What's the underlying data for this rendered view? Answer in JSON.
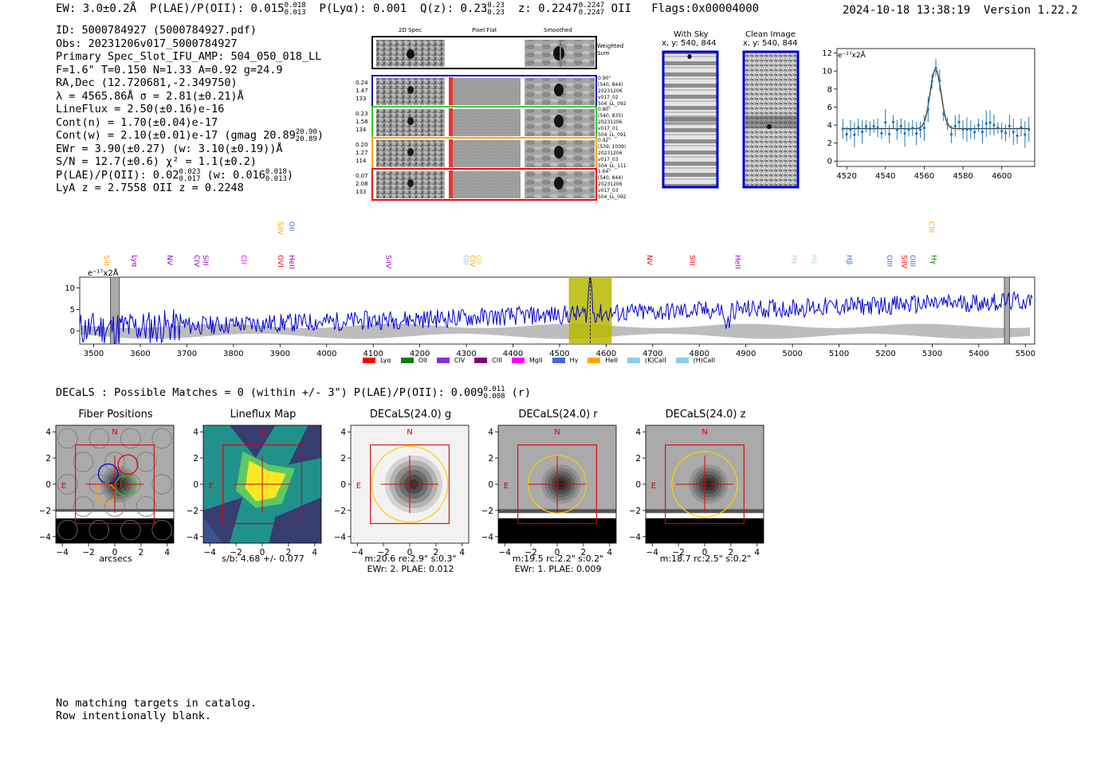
{
  "header": {
    "summary_ew": "EW: 3.0±0.2Å",
    "summary_plae_label": "P(LAE)/P(OII): 0.015",
    "summary_plae_hi": "0.018",
    "summary_plae_lo": "0.013",
    "summary_plya": "P(Lyα): 0.001",
    "summary_q_label": "Q(z): 0.23",
    "summary_q_hi": "0.23",
    "summary_q_lo": "0.23",
    "summary_z_label": "z: 0.2247",
    "summary_z_hi": "0.2247",
    "summary_z_lo": "0.2247",
    "summary_z_line": "OII",
    "summary_flags": "Flags:0x00004000",
    "timestamp": "2024-10-18 13:38:19",
    "version": "Version 1.22.2"
  },
  "info": {
    "id": "ID: 5000784927 (5000784927.pdf)",
    "obs": "Obs: 20231206v017_5000784927",
    "primary": "Primary Spec_Slot_IFU_AMP: 504_050_018_LL",
    "f_line": "F=1.6\"  T=0.150  N=1.33  A=0.92  g=24.9",
    "radec": "RA,Dec (12.720681,-2.349750)",
    "lambda": "λ = 4565.86Å  σ = 2.81(±0.21)Å",
    "lineflux": "LineFlux = 2.50(±0.16)e-16",
    "cont_n": "Cont(n) = 1.70(±0.04)e-17",
    "cont_w_label": "Cont(w) = 2.10(±0.01)e-17 (gmag 20.89",
    "cont_w_hi": "20.90",
    "cont_w_lo": "20.89",
    "cont_w_close": ")",
    "ewr": "EWr = 3.90(±0.27) (w: 3.10(±0.19))Å",
    "sn": "S/N = 12.7(±0.6)  χ² = 1.1(±0.2)",
    "plae_label": "P(LAE)/P(OII): 0.02",
    "plae_hi": "0.023",
    "plae_lo": "0.017",
    "plae_w": "(w: 0.016",
    "plae_w_hi": "0.018",
    "plae_w_lo": "0.013",
    "plae_w_close": ")",
    "lya_z": "LyA z = 2.7558   OII z = 0.2248"
  },
  "cutouts": {
    "col_2d": "2D Spec",
    "col_flat": "Pixel Flat",
    "col_smooth": "Smoothed",
    "weighted_sum": "Weighted Sum",
    "rows": [
      {
        "left": [
          "0.24",
          "1.47",
          "133"
        ],
        "right": [
          "0.90\"",
          "(540, 844)",
          "20231206",
          "v017_02",
          "504_LL_092"
        ],
        "color": "#0000cc"
      },
      {
        "left": [
          "0.23",
          "1.58",
          "134"
        ],
        "right": [
          "0.80\"",
          "(540, 835)",
          "20231206",
          "v017_01",
          "504_LL_091"
        ],
        "color": "#33cc33"
      },
      {
        "left": [
          "0.20",
          "1.27",
          "114"
        ],
        "right": [
          "0.92\"",
          "(539, 1009)",
          "20231206",
          "v017_03",
          "504_LL_111"
        ],
        "color": "#ffa500"
      },
      {
        "left": [
          "0.07",
          "2.08",
          "133"
        ],
        "right": [
          "1.64\"",
          "(540, 844)",
          "20231206",
          "v017_03",
          "504_LL_092"
        ],
        "color": "#ff0000"
      }
    ],
    "with_sky_title": "With Sky",
    "with_sky_xy": "x, y: 540, 844",
    "clean_title": "Clean Image",
    "clean_xy": "x, y: 540, 844"
  },
  "zoom_plot": {
    "ylabel": "e⁻¹⁷x2Å",
    "xticks": [
      "4520",
      "4540",
      "4560",
      "4580",
      "4600"
    ],
    "yticks": [
      "0",
      "2",
      "4",
      "6",
      "8",
      "10",
      "12"
    ]
  },
  "spectrum": {
    "ylabel": "e⁻¹⁷x2Å",
    "yticks": [
      "0",
      "5",
      "10"
    ],
    "xticks": [
      "3500",
      "3600",
      "3700",
      "3800",
      "3900",
      "4000",
      "4100",
      "4200",
      "4300",
      "4400",
      "4500",
      "4600",
      "4700",
      "4800",
      "4900",
      "5000",
      "5100",
      "5200",
      "5300",
      "5400",
      "5500"
    ],
    "line_labels": [
      {
        "text": "SiII",
        "color": "#ffa500",
        "w": 3518
      },
      {
        "text": "Lyα",
        "color": "#9400d3",
        "w": 3578
      },
      {
        "text": "NV",
        "color": "#9400d3",
        "w": 3653
      },
      {
        "text": "CIV",
        "color": "#9400d3",
        "w": 3711
      },
      {
        "text": "SiII",
        "color": "#9400d3",
        "w": 3730
      },
      {
        "text": "CII",
        "color": "#ff00ff",
        "w": 3812
      },
      {
        "text": "SiIV",
        "color": "#ffa500",
        "w": 3891
      },
      {
        "text": "OVI",
        "color": "#ff0000",
        "w": 3891
      },
      {
        "text": "OII",
        "color": "#4169e1",
        "w": 3915
      },
      {
        "text": "HeII",
        "color": "#9400d3",
        "w": 3915
      },
      {
        "text": "SiIV",
        "color": "#9400d3",
        "w": 4123
      },
      {
        "text": "OII",
        "color": "#87ceeb",
        "w": 4289
      },
      {
        "text": "CIV",
        "color": "#ffa500",
        "w": 4303
      },
      {
        "text": "OII",
        "color": "#ffd700",
        "w": 4316
      },
      {
        "text": "NV",
        "color": "#ff0000",
        "w": 4683
      },
      {
        "text": "SiII",
        "color": "#ff0000",
        "w": 4775
      },
      {
        "text": "HeII",
        "color": "#9400d3",
        "w": 4872
      },
      {
        "text": "Hγ",
        "color": "#add8e6",
        "w": 4995
      },
      {
        "text": "Hγ",
        "color": "#add8e6",
        "w": 5037
      },
      {
        "text": "Hβ",
        "color": "#4169e1",
        "w": 5112
      },
      {
        "text": "OIII",
        "color": "#4169e1",
        "w": 5198
      },
      {
        "text": "SiIV",
        "color": "#ff0000",
        "w": 5230
      },
      {
        "text": "OIII",
        "color": "#4169e1",
        "w": 5248
      },
      {
        "text": "CIII",
        "color": "#ffa500",
        "w": 5288
      },
      {
        "text": "Hγ",
        "color": "#008000",
        "w": 5293
      }
    ],
    "legend": [
      {
        "label": "Lyα",
        "color": "#ff0000"
      },
      {
        "label": "OII",
        "color": "#008000"
      },
      {
        "label": "CIV",
        "color": "#8a2be2"
      },
      {
        "label": "CIII",
        "color": "#800080"
      },
      {
        "label": "MgII",
        "color": "#ff00ff"
      },
      {
        "label": "Hγ",
        "color": "#4169e1"
      },
      {
        "label": "HeII",
        "color": "#ffa500"
      },
      {
        "label": "(K)CaII",
        "color": "#87ceeb"
      },
      {
        "label": "(H)CaII",
        "color": "#87ceeb"
      }
    ]
  },
  "decals": {
    "line_label": "DECaLS : Possible Matches = 0 (within +/- 3\")  P(LAE)/P(OII): 0.009",
    "line_hi": "0.011",
    "line_lo": "0.008",
    "line_band": "(r)",
    "panels": [
      {
        "title": "Fiber Positions",
        "cap1": "arcsecs",
        "cap2": ""
      },
      {
        "title": "Lineflux Map",
        "cap1": "s/b: 4.68 +/- 0.077",
        "cap2": ""
      },
      {
        "title": "DECaLS(24.0) g",
        "cap1": "m:20.6  re:2.9\"  s:0.3\"",
        "cap2": "EWr: 2. PLAE: 0.012"
      },
      {
        "title": "DECaLS(24.0) r",
        "cap1": "m:19.5 rc:2.2\"  s:0.2\"",
        "cap2": "EWr: 1. PLAE: 0.009"
      },
      {
        "title": "DECaLS(24.0) z",
        "cap1": "m:18.7 rc:2.5\"  s:0.2\"",
        "cap2": ""
      }
    ],
    "axis_ticks": [
      "−4",
      "−2",
      "0",
      "2",
      "4"
    ],
    "axis_yticks": [
      "4",
      "2",
      "0",
      "−2",
      "−4"
    ],
    "marker_n": "N",
    "marker_e": "E"
  },
  "footer": {
    "line1": "No matching targets in catalog.",
    "line2": "Row intentionally blank."
  }
}
